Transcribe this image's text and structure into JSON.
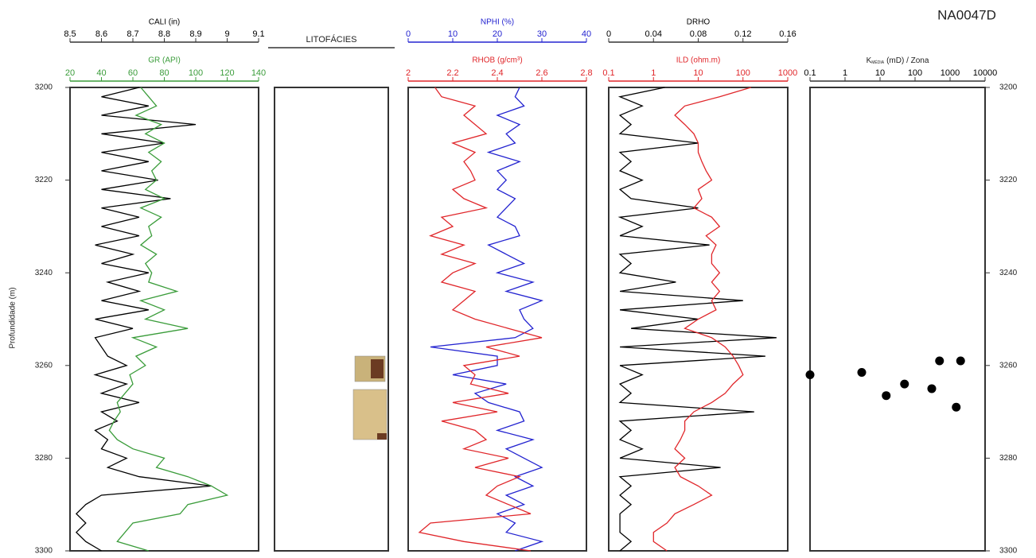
{
  "chart_data": {
    "type": "well-log",
    "title": "NA0047D",
    "y_label": "Profundidade (m)",
    "ylim": [
      3200,
      3300
    ],
    "yticks": [
      3200,
      3220,
      3240,
      3260,
      3280,
      3300
    ],
    "depth": [
      3200,
      3202,
      3204,
      3206,
      3208,
      3210,
      3212,
      3214,
      3216,
      3218,
      3220,
      3222,
      3224,
      3226,
      3228,
      3230,
      3232,
      3234,
      3236,
      3238,
      3240,
      3242,
      3244,
      3246,
      3248,
      3250,
      3252,
      3254,
      3256,
      3258,
      3260,
      3262,
      3264,
      3266,
      3268,
      3270,
      3272,
      3274,
      3276,
      3278,
      3280,
      3282,
      3284,
      3286,
      3288,
      3290,
      3292,
      3294,
      3296,
      3298,
      3300
    ],
    "tracks": [
      {
        "curves": [
          {
            "label": "CALI (in)",
            "color": "#000000",
            "log": false,
            "xlim": [
              8.5,
              9.1
            ],
            "xticks": [
              8.5,
              8.6,
              8.7,
              8.8,
              8.9,
              9,
              9.1
            ],
            "values": [
              8.72,
              8.6,
              8.75,
              8.6,
              8.9,
              8.6,
              8.8,
              8.6,
              8.75,
              8.6,
              8.78,
              8.6,
              8.82,
              8.6,
              8.72,
              8.6,
              8.72,
              8.58,
              8.7,
              8.6,
              8.75,
              8.62,
              8.72,
              8.6,
              8.75,
              8.58,
              8.7,
              8.58,
              8.6,
              8.62,
              8.68,
              8.58,
              8.68,
              8.6,
              8.72,
              8.6,
              8.65,
              8.58,
              8.62,
              8.6,
              8.68,
              8.62,
              8.72,
              8.95,
              8.6,
              8.55,
              8.52,
              8.55,
              8.52,
              8.55,
              8.6
            ]
          },
          {
            "label": "GR (API)",
            "color": "#3a9c3a",
            "log": false,
            "xlim": [
              20,
              140
            ],
            "xticks": [
              20,
              40,
              60,
              80,
              100,
              120,
              140
            ],
            "values": [
              65,
              70,
              75,
              62,
              78,
              68,
              80,
              70,
              78,
              72,
              75,
              68,
              80,
              65,
              78,
              70,
              72,
              65,
              75,
              68,
              72,
              70,
              88,
              65,
              80,
              68,
              95,
              60,
              75,
              62,
              68,
              58,
              60,
              55,
              50,
              52,
              48,
              45,
              50,
              60,
              80,
              75,
              95,
              110,
              120,
              95,
              90,
              60,
              55,
              50,
              70
            ]
          }
        ]
      },
      {
        "title": "LITOFÁCIES"
      },
      {
        "curves": [
          {
            "label": "NPHI (%)",
            "color": "#2323d0",
            "log": false,
            "xlim": [
              0,
              40
            ],
            "xticks": [
              0,
              10,
              20,
              30,
              40
            ],
            "values": [
              25,
              24,
              26,
              20,
              25,
              22,
              24,
              18,
              25,
              20,
              22,
              20,
              24,
              22,
              20,
              24,
              25,
              18,
              22,
              26,
              20,
              28,
              22,
              30,
              25,
              26,
              28,
              24,
              5,
              20,
              20,
              10,
              22,
              15,
              18,
              25,
              26,
              20,
              28,
              22,
              26,
              30,
              24,
              28,
              22,
              26,
              20,
              24,
              22,
              30,
              24
            ]
          },
          {
            "label": "RHOB (g/cm³)",
            "color": "#e0262a",
            "log": false,
            "xlim": [
              2,
              2.8
            ],
            "xticks": [
              2,
              2.2,
              2.4,
              2.6,
              2.8
            ],
            "values": [
              2.12,
              2.15,
              2.3,
              2.25,
              2.3,
              2.35,
              2.2,
              2.3,
              2.25,
              2.28,
              2.3,
              2.2,
              2.25,
              2.35,
              2.15,
              2.2,
              2.1,
              2.25,
              2.15,
              2.3,
              2.2,
              2.15,
              2.3,
              2.25,
              2.2,
              2.3,
              2.45,
              2.6,
              2.35,
              2.5,
              2.25,
              2.3,
              2.28,
              2.45,
              2.2,
              2.4,
              2.15,
              2.3,
              2.35,
              2.25,
              2.45,
              2.3,
              2.5,
              2.4,
              2.35,
              2.45,
              2.55,
              2.1,
              2.05,
              2.25,
              2.55
            ]
          }
        ]
      },
      {
        "curves": [
          {
            "label": "DRHO",
            "color": "#000000",
            "log": false,
            "xlim": [
              0,
              0.16
            ],
            "xticks": [
              0,
              0.04,
              0.08,
              0.12,
              0.16
            ],
            "values": [
              0.05,
              0.01,
              0.03,
              0.01,
              0.02,
              0.01,
              0.08,
              0.01,
              0.02,
              0.01,
              0.03,
              0.01,
              0.02,
              0.08,
              0.01,
              0.03,
              0.01,
              0.09,
              0.01,
              0.02,
              0.01,
              0.06,
              0.01,
              0.12,
              0.01,
              0.08,
              0.02,
              0.15,
              0.01,
              0.14,
              0.01,
              0.03,
              0.01,
              0.02,
              0.01,
              0.13,
              0.01,
              0.02,
              0.01,
              0.03,
              0.01,
              0.1,
              0.01,
              0.02,
              0.01,
              0.02,
              0.01,
              0.01,
              0.01,
              0.02,
              0.01
            ]
          },
          {
            "label": "ILD (ohm.m)",
            "color": "#e0262a",
            "log": true,
            "xlim": [
              0.1,
              1000
            ],
            "xticks": [
              0.1,
              1,
              10,
              100,
              1000
            ],
            "values": [
              150,
              30,
              5,
              3,
              5,
              8,
              10,
              10,
              12,
              15,
              20,
              10,
              12,
              8,
              20,
              30,
              15,
              25,
              20,
              20,
              30,
              20,
              30,
              20,
              25,
              10,
              5,
              20,
              40,
              60,
              80,
              100,
              60,
              40,
              20,
              8,
              5,
              5,
              4,
              3,
              5,
              3,
              4,
              10,
              20,
              8,
              3,
              2,
              1,
              1,
              2
            ]
          }
        ]
      },
      {
        "curves": [
          {
            "type": "scatter",
            "label_parts": [
              "K",
              "MÉDIA",
              "(mD) / Zona"
            ],
            "color": "#000000",
            "log": true,
            "xlim": [
              0.1,
              10000
            ],
            "xticks": [
              0.1,
              1,
              10,
              100,
              1000,
              10000
            ],
            "values": [
              0.1,
              3,
              15,
              50,
              300,
              500,
              2000,
              1500
            ],
            "depth": [
              3262,
              3261.5,
              3266.5,
              3264,
              3265,
              3259,
              3259,
              3269
            ]
          }
        ]
      }
    ]
  }
}
